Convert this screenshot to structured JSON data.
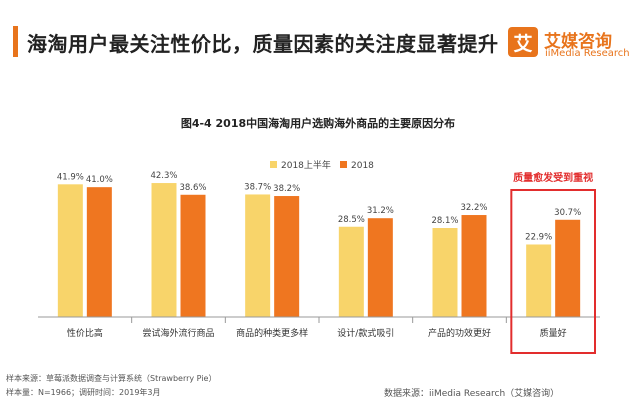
{
  "header": {
    "title": "海淘用户最关注性价比，质量因素的关注度显著提升"
  },
  "logo": {
    "mark": "艾",
    "name": "艾媒咨询",
    "sub": "iiMedia Research"
  },
  "colors": {
    "accent": "#e8741c",
    "series_2018h1": "#f8d46a",
    "series_2018": "#ef7620",
    "highlight_box": "#e22d2d"
  },
  "chart_data": {
    "type": "bar",
    "title": "图4-4 2018中国海淘用户选购海外商品的主要原因分布",
    "categories": [
      "性价比高",
      "尝试海外流行商品",
      "商品的种类更多样",
      "设计/款式吸引",
      "产品的功效更好",
      "质量好"
    ],
    "series": [
      {
        "name": "2018上半年",
        "values": [
          41.9,
          42.3,
          38.7,
          28.5,
          28.1,
          22.9
        ]
      },
      {
        "name": "2018",
        "values": [
          41.0,
          38.6,
          38.2,
          31.2,
          32.2,
          30.7
        ]
      }
    ],
    "value_suffix": "%",
    "ylim": [
      0,
      60
    ],
    "grid": false,
    "legend_position": "top-center",
    "annotation": {
      "text": "质量愈发受到重视",
      "category": "质量好"
    }
  },
  "footer": {
    "source_line1": "样本来源：草莓派数据调查与计算系统（Strawberry Pie）",
    "source_line2": "样本量：N=1966；调研时间：2019年3月",
    "data_source": "数据来源：iiMedia Research（艾媒咨询）"
  }
}
